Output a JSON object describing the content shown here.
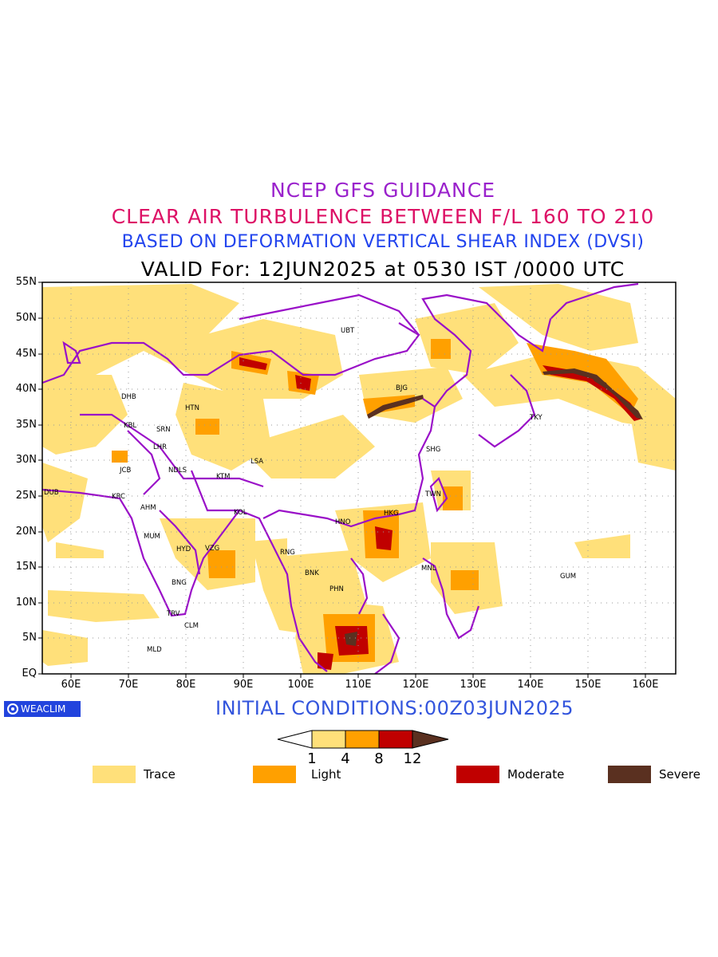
{
  "titles": {
    "line1": "NCEP GFS GUIDANCE",
    "line2": "CLEAR AIR TURBULENCE BETWEEN F/L 160 TO 210",
    "line3": "BASED ON DEFORMATION VERTICAL SHEAR INDEX (DVSI)",
    "line4": "VALID For: 12JUN2025 at 0530 IST /0000 UTC"
  },
  "colors": {
    "line1": "#9a22cc",
    "line2": "#dd1166",
    "line3": "#2244ee",
    "line4": "#000000",
    "coast": "#9a10c8",
    "trace": "#ffe07a",
    "light": "#ffa000",
    "moderate": "#c00000",
    "severe": "#5a3020"
  },
  "axes": {
    "lat_labels": [
      "EQ",
      "5N",
      "10N",
      "15N",
      "20N",
      "25N",
      "30N",
      "35N",
      "40N",
      "45N",
      "50N",
      "55N"
    ],
    "lon_labels": [
      "60E",
      "70E",
      "80E",
      "90E",
      "100E",
      "110E",
      "120E",
      "130E",
      "140E",
      "150E",
      "160E"
    ]
  },
  "cities": [
    {
      "code": "UBT"
    },
    {
      "code": "BJG"
    },
    {
      "code": "TKY"
    },
    {
      "code": "SHG"
    },
    {
      "code": "TWN"
    },
    {
      "code": "HKG"
    },
    {
      "code": "HNO"
    },
    {
      "code": "MNL"
    },
    {
      "code": "GUM"
    },
    {
      "code": "RNG"
    },
    {
      "code": "BNK"
    },
    {
      "code": "PHN"
    },
    {
      "code": "LSA"
    },
    {
      "code": "KTM"
    },
    {
      "code": "KOL"
    },
    {
      "code": "HTN"
    },
    {
      "code": "DHB"
    },
    {
      "code": "KBL"
    },
    {
      "code": "SRN"
    },
    {
      "code": "LHR"
    },
    {
      "code": "NDLS"
    },
    {
      "code": "JCB"
    },
    {
      "code": "KRC"
    },
    {
      "code": "AHM"
    },
    {
      "code": "MUM"
    },
    {
      "code": "HYD"
    },
    {
      "code": "VZG"
    },
    {
      "code": "BNG"
    },
    {
      "code": "TRV"
    },
    {
      "code": "CLM"
    },
    {
      "code": "MLD"
    },
    {
      "code": "DUB"
    }
  ],
  "brand": "WEACLIM",
  "initial_conditions": "INITIAL CONDITIONS:00Z03JUN2025",
  "colorbar": {
    "ticks": [
      "1",
      "4",
      "8",
      "12"
    ]
  },
  "legend": [
    {
      "label": "Trace"
    },
    {
      "label": "Light"
    },
    {
      "label": "Moderate"
    },
    {
      "label": "Severe"
    }
  ]
}
